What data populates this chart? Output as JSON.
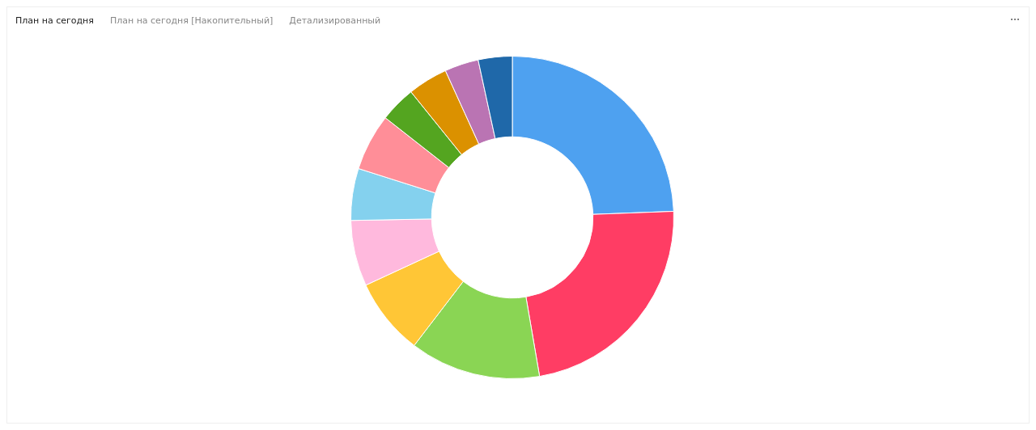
{
  "chart_data": {
    "type": "donut",
    "annotations": [
      "План на сегодня",
      "План на сегодня [Накопительный]",
      "Детализированный"
    ],
    "categories": [
      null,
      null,
      null,
      null,
      null,
      null,
      null,
      null,
      null,
      null,
      null
    ],
    "values": [
      24.4,
      22.9,
      13.1,
      7.7,
      6.6,
      5.2,
      5.7,
      3.6,
      4.0,
      3.4,
      3.4
    ],
    "colors": [
      "#4ea1f0",
      "#ff3d64",
      "#8ad554",
      "#ffc636",
      "#ffb9dd",
      "#84d1ee",
      "#ff8e98",
      "#54a520",
      "#db9100",
      "#ba74b3",
      "#1f68a9"
    ],
    "legend": false
  }
}
